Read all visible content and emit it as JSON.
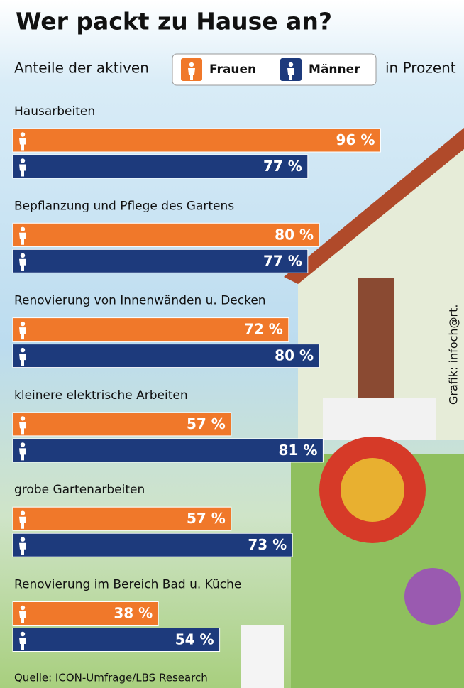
{
  "chart_data": {
    "type": "bar",
    "orientation": "horizontal",
    "title": "Wer packt zu Hause an?",
    "subtitle": "Anteile der aktiven",
    "unit_note": "in Prozent",
    "source": "Quelle: ICON-Umfrage/LBS Research",
    "credit": "Grafik: infoch@rt.",
    "categories": [
      "Hausarbeiten",
      "Bepflanzung und Pflege des Gartens",
      "Renovierung von Innenwänden u. Decken",
      "kleinere elektrische Arbeiten",
      "grobe Gartenarbeiten",
      "Renovierung im Bereich Bad u. Küche"
    ],
    "series": [
      {
        "name": "Frauen",
        "color": "#f0782a",
        "values": [
          96,
          80,
          72,
          57,
          57,
          38
        ],
        "value_labels": [
          "96 %",
          "80 %",
          "72 %",
          "57 %",
          "57 %",
          "38 %"
        ]
      },
      {
        "name": "Männer",
        "color": "#1d3a7c",
        "values": [
          77,
          77,
          80,
          81,
          73,
          54
        ],
        "value_labels": [
          "77 %",
          "77 %",
          "80 %",
          "81 %",
          "73 %",
          "54 %"
        ]
      }
    ]
  }
}
